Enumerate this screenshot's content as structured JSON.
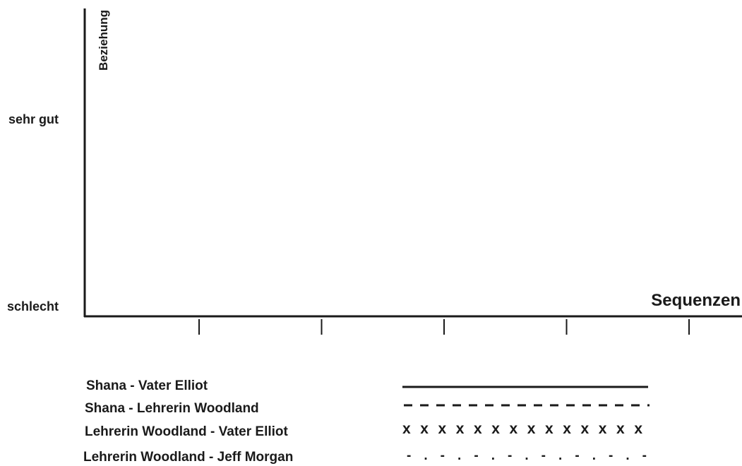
{
  "chart_data": {
    "type": "line",
    "title": "",
    "xlabel": "Sequenzen",
    "ylabel": "Beziehung",
    "y_tick_labels": [
      "sehr gut",
      "schlecht"
    ],
    "x_tick_count": 5,
    "x_tick_labels": [],
    "grid": false,
    "legend_placement": "bottom",
    "series": [
      {
        "name": "Shana - Vater Elliot",
        "line_style": "solid",
        "values": []
      },
      {
        "name": "Shana - Lehrerin Woodland",
        "line_style": "dashed",
        "values": []
      },
      {
        "name": "Lehrerin Woodland - Vater Elliot",
        "line_style": "xxxxxxxxxxxxxx",
        "values": []
      },
      {
        "name": "Lehrerin Woodland - Jeff Morgan",
        "line_style": "- . - . - . - . - . - . - . -",
        "values": []
      }
    ]
  },
  "legend_samples": {
    "cross_sample": "xxxxxxxxxxxxxx",
    "dashdot_sample": "- . - . - . - . - . - . - . -"
  },
  "colors": {
    "ink": "#1a1a1a",
    "background": "#ffffff"
  }
}
